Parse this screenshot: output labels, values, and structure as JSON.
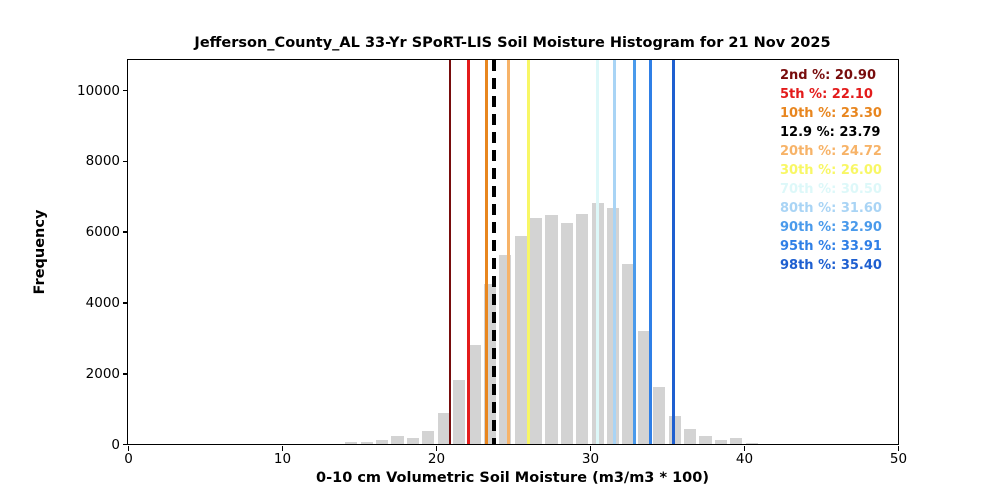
{
  "title": "Jefferson_County_AL 33-Yr SPoRT-LIS Soil Moisture Histogram for 21 Nov 2025",
  "chart_data": {
    "type": "bar",
    "subtype": "histogram",
    "title": "Jefferson_County_AL 33-Yr SPoRT-LIS Soil Moisture Histogram for 21 Nov 2025",
    "xlabel": "0-10 cm Volumetric Soil Moisture (m3/m3 * 100)",
    "ylabel": "Frequency",
    "xlim": [
      0,
      50
    ],
    "ylim": [
      0,
      10850
    ],
    "xticks": [
      0,
      10,
      20,
      30,
      40,
      50
    ],
    "yticks": [
      0,
      2000,
      4000,
      6000,
      8000,
      10000
    ],
    "grid": false,
    "bar_color": "#d3d3d3",
    "bin_width": 1,
    "bar_relative_width": 0.8,
    "bins_left_edges": [
      14,
      15,
      16,
      17,
      18,
      19,
      20,
      21,
      22,
      23,
      24,
      25,
      26,
      27,
      28,
      29,
      30,
      31,
      32,
      33,
      34,
      35,
      36,
      37,
      38,
      39,
      40
    ],
    "frequencies": [
      50,
      55,
      110,
      230,
      160,
      360,
      870,
      1800,
      2800,
      4520,
      5340,
      5880,
      6380,
      6470,
      6250,
      6500,
      6820,
      6660,
      5100,
      3190,
      1620,
      780,
      420,
      220,
      120,
      170,
      30
    ],
    "percentile_lines": [
      {
        "label": "2nd %",
        "value": 20.9,
        "text": "2nd %: 20.90",
        "color": "#780c0c",
        "style": "solid"
      },
      {
        "label": "5th %",
        "value": 22.1,
        "text": "5th %: 22.10",
        "color": "#e31b1b",
        "style": "solid"
      },
      {
        "label": "10th %",
        "value": 23.3,
        "text": "10th %: 23.30",
        "color": "#e8861f",
        "style": "solid"
      },
      {
        "label": "12.9 %",
        "value": 23.79,
        "text": "12.9 %: 23.79",
        "color": "#000000",
        "style": "dashed"
      },
      {
        "label": "20th %",
        "value": 24.72,
        "text": "20th %: 24.72",
        "color": "#f7b368",
        "style": "solid"
      },
      {
        "label": "30th %",
        "value": 26.0,
        "text": "30th %: 26.00",
        "color": "#f8f765",
        "style": "solid"
      },
      {
        "label": "70th %",
        "value": 30.5,
        "text": "70th %: 30.50",
        "color": "#ddf8f9",
        "style": "solid"
      },
      {
        "label": "80th %",
        "value": 31.6,
        "text": "80th %: 31.60",
        "color": "#a9d4f5",
        "style": "solid"
      },
      {
        "label": "90th %",
        "value": 32.9,
        "text": "90th %: 32.90",
        "color": "#4a9aeb",
        "style": "solid"
      },
      {
        "label": "95th %",
        "value": 33.91,
        "text": "95th %: 33.91",
        "color": "#2f7fe6",
        "style": "solid"
      },
      {
        "label": "98th %",
        "value": 35.4,
        "text": "98th %: 35.40",
        "color": "#1e5fd0",
        "style": "solid"
      }
    ],
    "legend_position": "upper right"
  }
}
